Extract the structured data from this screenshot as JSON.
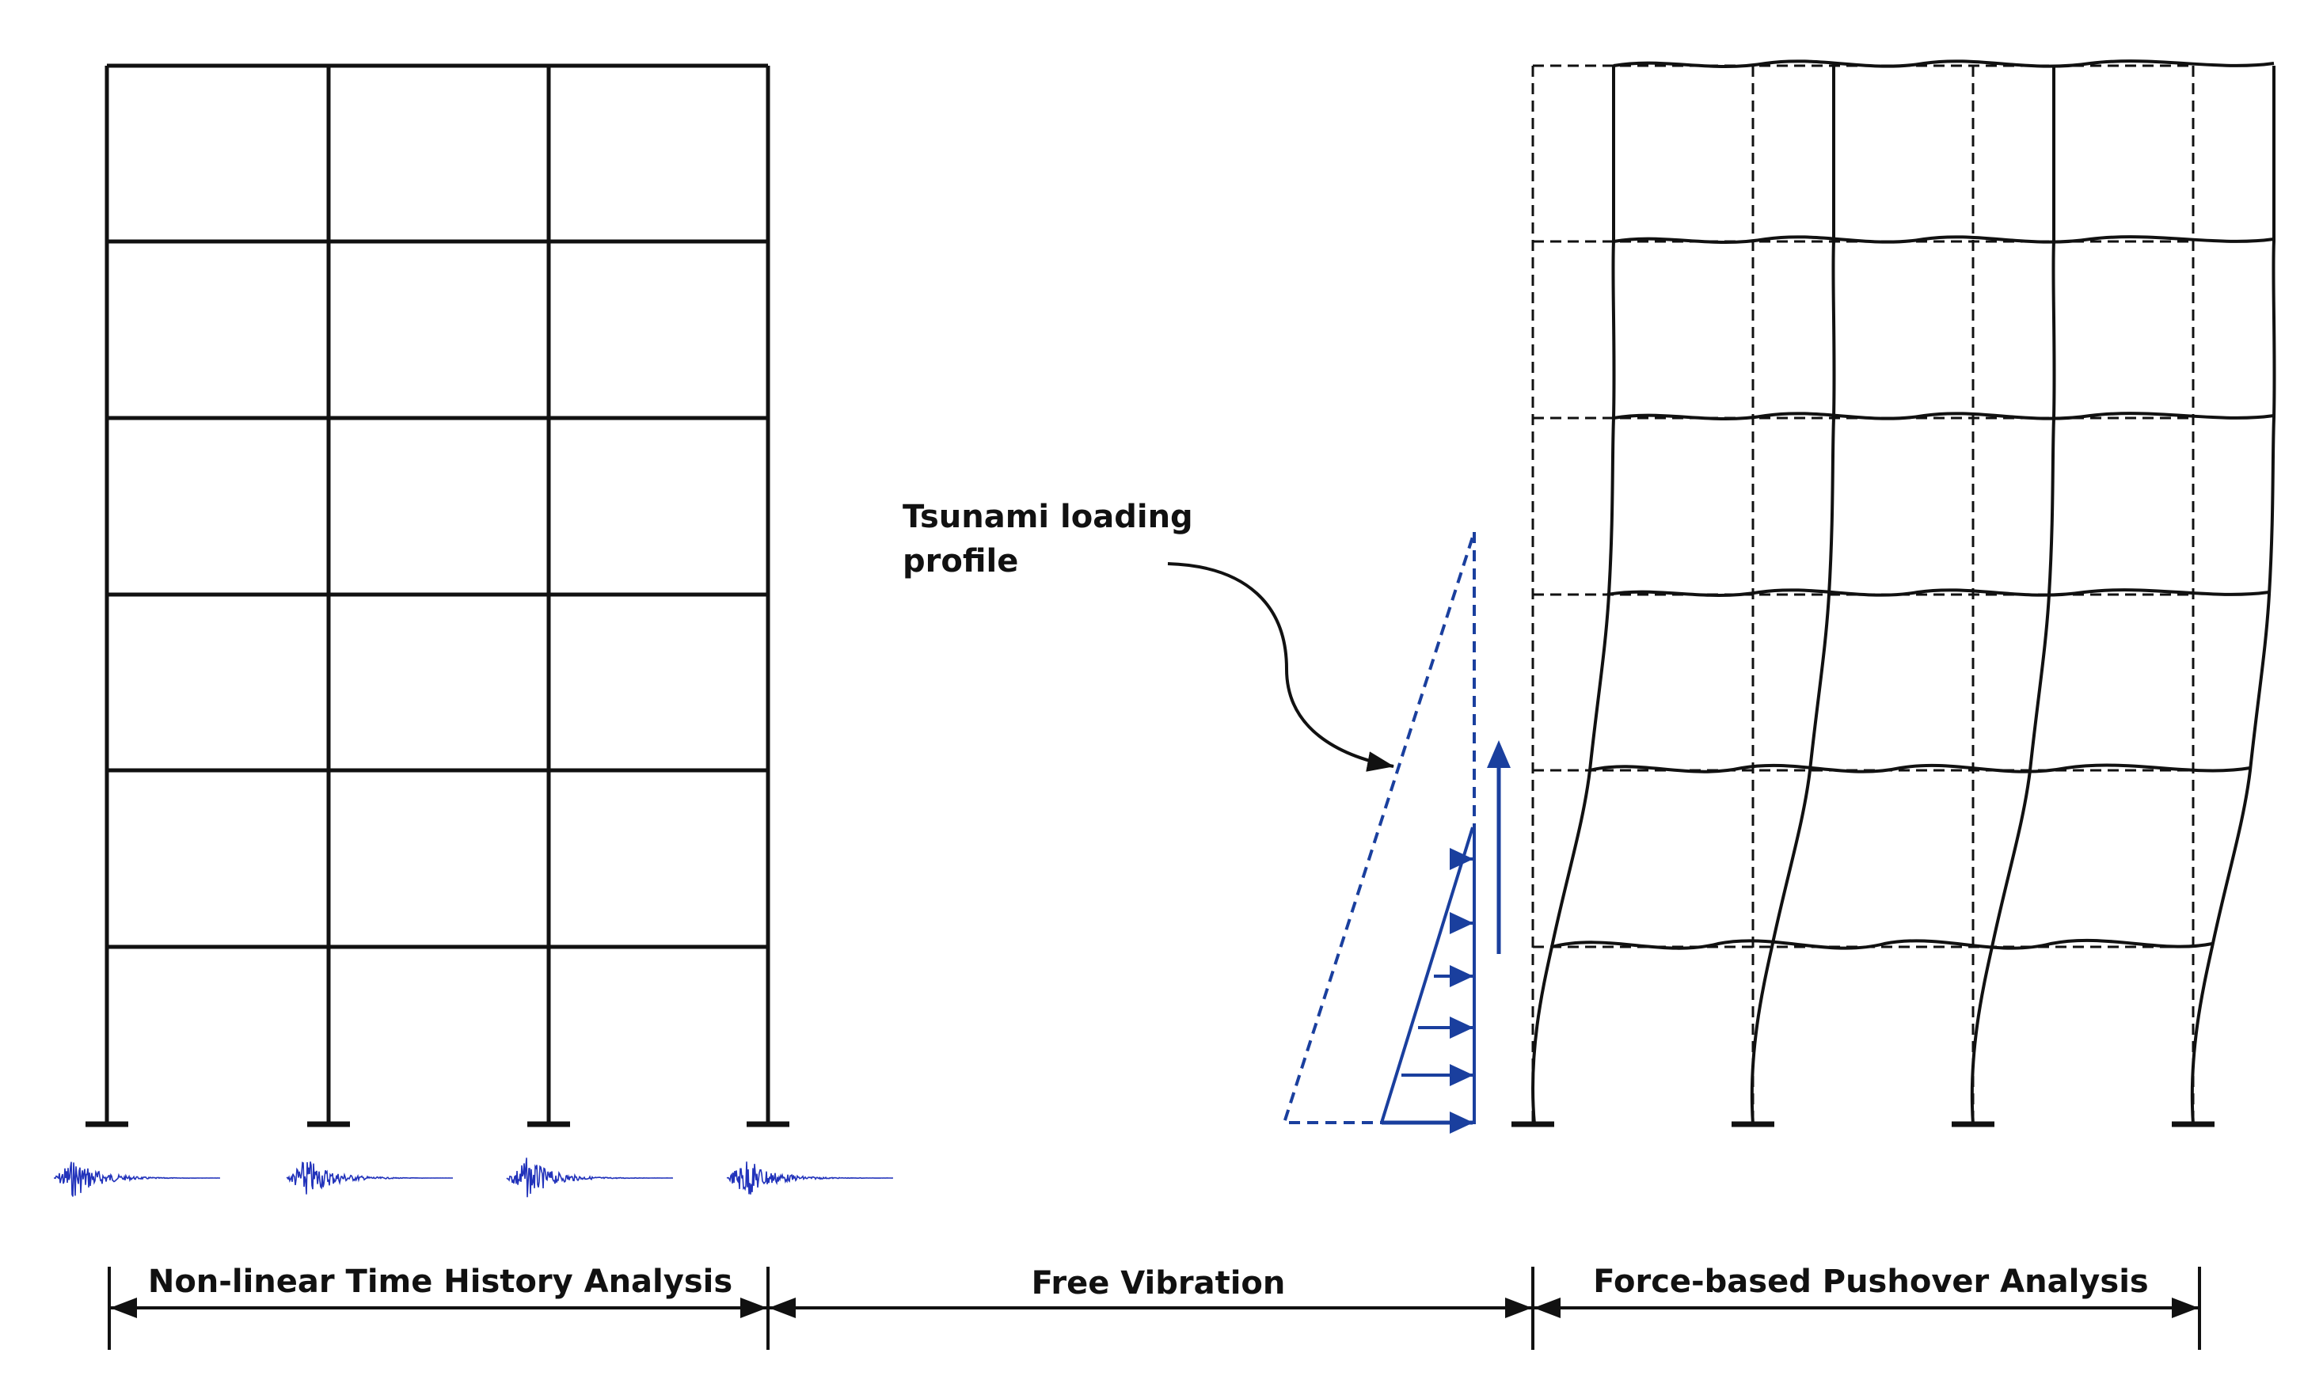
{
  "annotation": {
    "line1": "Tsunami loading",
    "line2": "profile"
  },
  "phases": {
    "nlth": "Non-linear Time History Analysis",
    "free_vibration": "Free Vibration",
    "pushover": "Force-based Pushover Analysis"
  },
  "frame": {
    "stories": 6,
    "bays": 3
  },
  "colors": {
    "structure": "#111111",
    "load": "#1a3f9e",
    "ground_motion": "#2233bb",
    "background": "#ffffff"
  }
}
